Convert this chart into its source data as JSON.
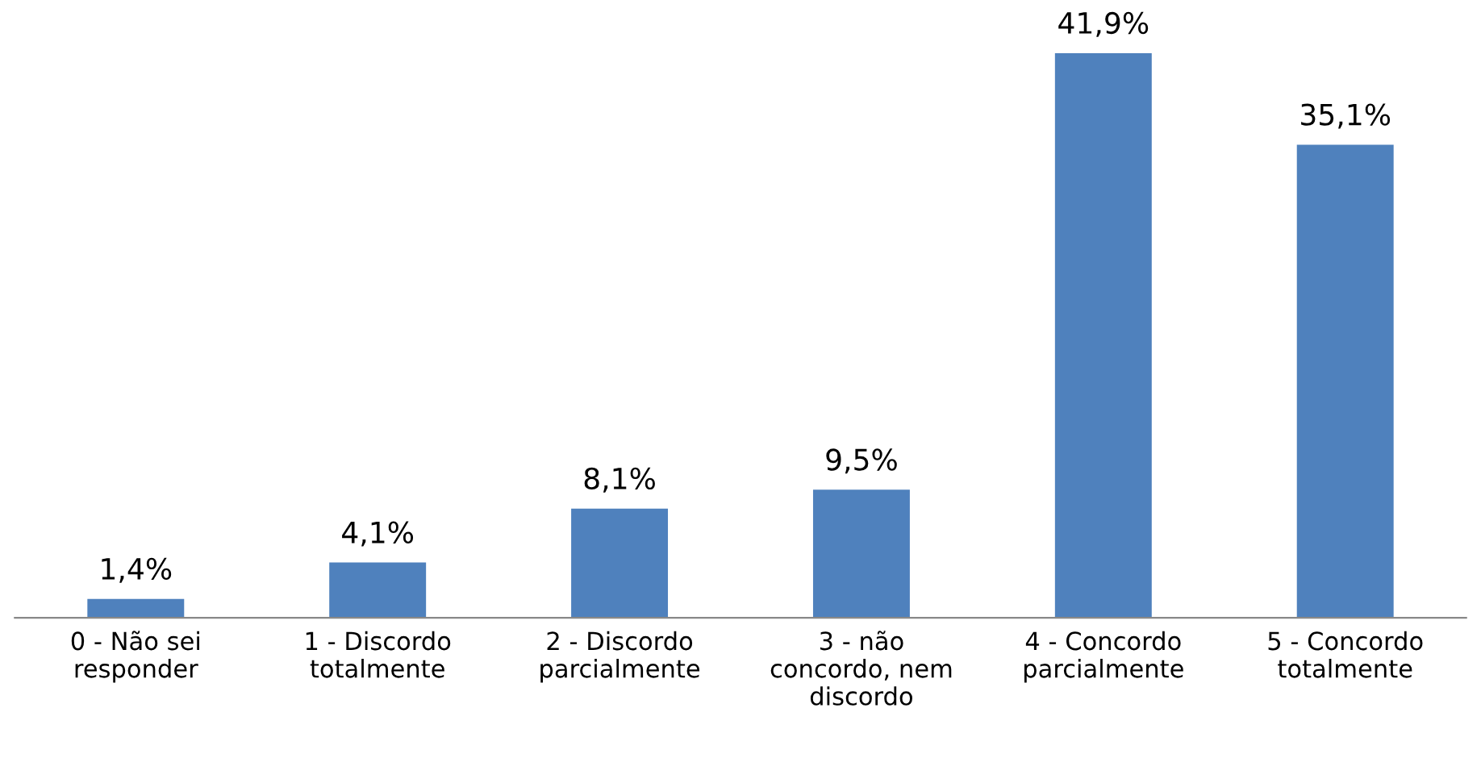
{
  "chart_data": {
    "type": "bar",
    "categories": [
      "0 - Não sei\nresponder",
      "1 - Discordo\ntotalmente",
      "2 - Discordo\nparcialmente",
      "3 - não\nconcordo, nem\ndiscordo",
      "4 - Concordo\nparcialmente",
      "5 - Concordo\ntotalmente"
    ],
    "values": [
      1.4,
      4.1,
      8.1,
      9.5,
      41.9,
      35.1
    ],
    "value_labels": [
      "1,4%",
      "4,1%",
      "8,1%",
      "9,5%",
      "41,9%",
      "35,1%"
    ],
    "color": "#4f81bd",
    "grid": false,
    "legend": false
  }
}
